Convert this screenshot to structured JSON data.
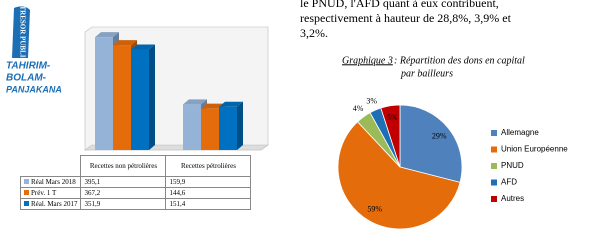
{
  "logo": {
    "vertical": "TRESOR PUBLIC",
    "lines": [
      "TAHIRIM-",
      "BOLAM-",
      "PANJAKANA"
    ]
  },
  "paragraph": [
    "le PNUD, l'AFD quant à eux contribuent,",
    "respectivement à hauteur de 28,8%, 3,9% et",
    "3,2%."
  ],
  "chart_data": [
    {
      "type": "bar",
      "categories": [
        "Recettes non pétrolières",
        "Recettes pétrolières"
      ],
      "ylim": [
        0,
        420
      ],
      "series": [
        {
          "name": "Réal Mars 2018",
          "color": "#95b3d7",
          "values": [
            395.1,
            159.9
          ],
          "value_labels": [
            "395,1",
            "159,9"
          ]
        },
        {
          "name": "Prév. 1 T",
          "color": "#e46c0a",
          "values": [
            367.2,
            144.6
          ],
          "value_labels": [
            "367,2",
            "144,6"
          ]
        },
        {
          "name": "Réal. Mars 2017",
          "color": "#0070c0",
          "values": [
            351.9,
            151.4
          ],
          "value_labels": [
            "351,9",
            "151,4"
          ]
        }
      ]
    },
    {
      "type": "pie",
      "title": [
        "Graphique 3",
        " : Répartition des dons en capital",
        "par bailleurs"
      ],
      "categories": [
        "Allemagne",
        "Union Européenne",
        "PNUD",
        "AFD",
        "Autres"
      ],
      "values": [
        29,
        59,
        4,
        3,
        5
      ],
      "value_labels": [
        "29%",
        "59%",
        "4%",
        "3%",
        "5%"
      ],
      "colors": [
        "#4f81bd",
        "#e46c0a",
        "#9bbb59",
        "#1f6fb5",
        "#c00000"
      ]
    }
  ]
}
